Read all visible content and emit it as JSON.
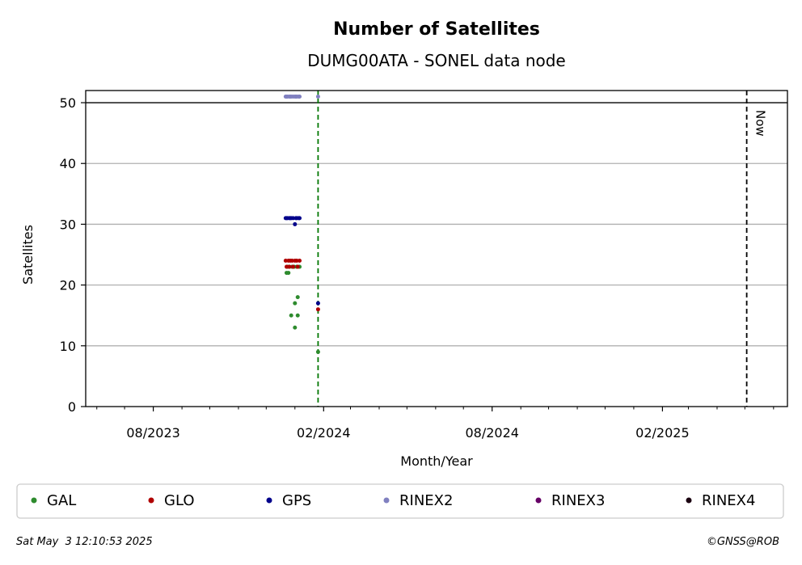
{
  "chart_data": {
    "type": "scatter",
    "title": "Number of Satellites",
    "subtitle": "DUMG00ATA - SONEL data node",
    "xlabel": "Month/Year",
    "ylabel": "Satellites",
    "xlim": [
      "2023-05-20",
      "2025-06-16"
    ],
    "ylim": [
      0,
      52
    ],
    "yticks": [
      0,
      10,
      20,
      30,
      40,
      50
    ],
    "xticks": [
      {
        "date": "2023-08-01",
        "label": "08/2023"
      },
      {
        "date": "2024-02-01",
        "label": "02/2024"
      },
      {
        "date": "2024-08-01",
        "label": "08/2024"
      },
      {
        "date": "2025-02-01",
        "label": "02/2025"
      }
    ],
    "grid": "y",
    "reference_lines": [
      {
        "type": "horizontal",
        "y": 50,
        "color": "#000000",
        "style": "solid"
      },
      {
        "type": "vertical",
        "x": "2024-01-26",
        "color": "#007700",
        "style": "dashed"
      },
      {
        "type": "vertical",
        "x": "2025-05-03",
        "color": "#000000",
        "style": "dashed",
        "label": "Now"
      }
    ],
    "series": [
      {
        "name": "GAL",
        "color": "#2e8b2e",
        "points": [
          [
            "2023-12-23",
            22
          ],
          [
            "2023-12-24",
            23
          ],
          [
            "2023-12-25",
            22
          ],
          [
            "2023-12-26",
            23
          ],
          [
            "2023-12-28",
            15
          ],
          [
            "2023-12-29",
            23
          ],
          [
            "2023-12-31",
            23
          ],
          [
            "2024-01-01",
            13
          ],
          [
            "2024-01-01",
            17
          ],
          [
            "2024-01-03",
            23
          ],
          [
            "2024-01-04",
            15
          ],
          [
            "2024-01-04",
            18
          ],
          [
            "2024-01-06",
            23
          ],
          [
            "2024-01-26",
            9
          ]
        ]
      },
      {
        "name": "GLO",
        "color": "#b00000",
        "points": [
          [
            "2023-12-22",
            24
          ],
          [
            "2023-12-23",
            23
          ],
          [
            "2023-12-25",
            24
          ],
          [
            "2023-12-26",
            23
          ],
          [
            "2023-12-27",
            24
          ],
          [
            "2023-12-29",
            24
          ],
          [
            "2023-12-30",
            23
          ],
          [
            "2024-01-01",
            24
          ],
          [
            "2024-01-03",
            24
          ],
          [
            "2024-01-04",
            23
          ],
          [
            "2024-01-06",
            24
          ],
          [
            "2024-01-26",
            16
          ]
        ]
      },
      {
        "name": "GPS",
        "color": "#00008b",
        "points": [
          [
            "2023-12-22",
            31
          ],
          [
            "2023-12-23",
            31
          ],
          [
            "2023-12-24",
            31
          ],
          [
            "2023-12-26",
            31
          ],
          [
            "2023-12-27",
            31
          ],
          [
            "2023-12-28",
            31
          ],
          [
            "2023-12-30",
            31
          ],
          [
            "2024-01-01",
            30
          ],
          [
            "2024-01-02",
            31
          ],
          [
            "2024-01-03",
            31
          ],
          [
            "2024-01-05",
            31
          ],
          [
            "2024-01-06",
            31
          ],
          [
            "2024-01-26",
            17
          ]
        ]
      },
      {
        "name": "RINEX2",
        "color": "#8080c0",
        "points": [
          [
            "2023-12-22",
            51
          ],
          [
            "2023-12-23",
            51
          ],
          [
            "2023-12-24",
            51
          ],
          [
            "2023-12-26",
            51
          ],
          [
            "2023-12-27",
            51
          ],
          [
            "2023-12-28",
            51
          ],
          [
            "2023-12-30",
            51
          ],
          [
            "2024-01-01",
            51
          ],
          [
            "2024-01-02",
            51
          ],
          [
            "2024-01-03",
            51
          ],
          [
            "2024-01-05",
            51
          ],
          [
            "2024-01-06",
            51
          ],
          [
            "2024-01-26",
            51
          ]
        ]
      },
      {
        "name": "RINEX3",
        "color": "#660066",
        "points": []
      },
      {
        "name": "RINEX4",
        "color": "#1a0010",
        "points": []
      }
    ],
    "legend_position": "bottom"
  },
  "footer": {
    "timestamp": "Sat May  3 12:10:53 2025",
    "credit": "©GNSS@ROB"
  }
}
